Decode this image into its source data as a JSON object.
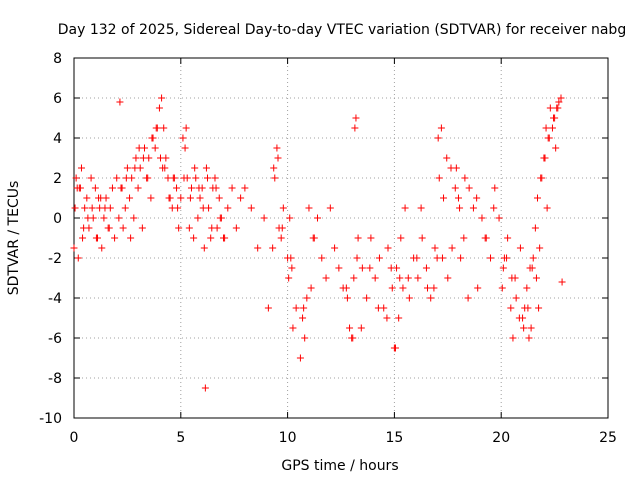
{
  "chart_data": {
    "type": "scatter",
    "title": "Day 132 of 2025, Sidereal Day-to-day VTEC variation (SDTVAR) for receiver nabg",
    "xlabel": "GPS time / hours",
    "ylabel": "SDTVAR / TECUs",
    "xlim": [
      0,
      25
    ],
    "ylim": [
      -10,
      8
    ],
    "xticks": [
      "0",
      "5",
      "10",
      "15",
      "20",
      "25"
    ],
    "yticks": [
      "-10",
      "-8",
      "-6",
      "-4",
      "-2",
      "0",
      "2",
      "4",
      "6",
      "8"
    ],
    "grid": true,
    "marker": "+",
    "color": "#ff0000",
    "series": [
      {
        "name": "SDTVAR",
        "x": [
          0.0,
          0.1,
          0.2,
          0.3,
          0.4,
          0.5,
          0.6,
          0.7,
          0.8,
          0.9,
          1.0,
          1.1,
          1.2,
          1.3,
          1.4,
          1.5,
          1.6,
          1.7,
          1.8,
          1.9,
          2.0,
          2.1,
          2.2,
          2.3,
          2.4,
          2.5,
          2.6,
          2.7,
          2.8,
          2.9,
          3.0,
          3.1,
          3.2,
          3.3,
          3.4,
          3.5,
          3.6,
          3.7,
          3.8,
          3.9,
          4.0,
          4.1,
          4.2,
          4.3,
          4.4,
          4.5,
          4.6,
          4.7,
          4.8,
          4.9,
          5.0,
          5.1,
          5.2,
          5.3,
          5.4,
          5.5,
          5.6,
          5.7,
          5.8,
          5.9,
          6.0,
          6.1,
          6.2,
          6.3,
          6.4,
          6.5,
          6.6,
          6.7,
          6.8,
          6.9,
          7.0,
          7.2,
          7.4,
          7.6,
          7.8,
          8.0,
          8.3,
          8.6,
          8.9,
          9.1,
          9.3,
          9.4,
          9.5,
          9.6,
          9.7,
          9.8,
          10.0,
          10.1,
          10.2,
          10.4,
          10.6,
          10.7,
          10.8,
          10.9,
          11.0,
          11.1,
          11.2,
          11.4,
          11.6,
          11.8,
          12.0,
          12.2,
          12.4,
          12.6,
          12.8,
          12.9,
          13.0,
          13.1,
          13.2,
          13.3,
          13.5,
          13.7,
          13.9,
          14.1,
          14.3,
          14.5,
          14.7,
          14.9,
          15.0,
          15.1,
          15.2,
          15.3,
          15.4,
          15.5,
          15.7,
          15.9,
          16.1,
          16.3,
          16.5,
          16.7,
          16.9,
          17.0,
          17.1,
          17.2,
          17.3,
          17.5,
          17.7,
          17.9,
          18.0,
          18.1,
          18.3,
          18.5,
          18.7,
          18.9,
          19.1,
          19.3,
          19.5,
          19.7,
          19.9,
          20.1,
          20.3,
          20.5,
          20.7,
          20.9,
          21.0,
          21.1,
          21.2,
          21.3,
          21.4,
          21.5,
          21.6,
          21.7,
          21.8,
          21.9,
          22.0,
          22.1,
          22.2,
          22.3,
          22.4,
          22.5,
          22.6,
          22.7,
          22.8,
          0.05,
          0.25,
          0.45,
          0.65,
          0.85,
          1.05,
          1.25,
          1.45,
          2.25,
          2.45,
          2.65,
          2.85,
          3.05,
          3.25,
          3.45,
          3.65,
          3.85,
          4.05,
          4.25,
          4.45,
          4.65,
          4.85,
          5.25,
          5.45,
          5.65,
          5.85,
          6.05,
          6.25,
          6.45,
          6.65,
          6.85,
          7.05,
          9.35,
          9.55,
          9.75,
          10.15,
          13.05,
          13.15,
          13.25,
          14.65,
          14.85,
          15.05,
          15.25,
          16.05,
          16.55,
          17.05,
          17.25,
          17.45,
          17.65,
          17.85,
          18.05,
          18.25,
          20.05,
          20.25,
          20.45,
          20.65,
          20.85,
          21.05,
          21.25,
          21.45,
          21.65,
          21.85,
          22.05,
          22.25,
          22.45,
          22.65,
          22.85,
          0.15,
          0.35,
          1.15,
          1.65,
          2.15,
          4.15,
          5.15,
          6.15,
          10.05,
          10.25,
          10.75,
          11.25,
          12.75,
          13.45,
          13.85,
          14.25,
          15.65,
          16.25,
          16.85,
          18.45,
          18.85,
          19.25,
          19.65,
          20.15,
          20.55,
          21.35,
          21.75,
          22.15,
          22.55
        ],
        "y": [
          -1.5,
          2.0,
          -2.0,
          1.5,
          -1.0,
          0.5,
          1.0,
          -0.5,
          2.0,
          0.0,
          1.5,
          -1.0,
          0.5,
          -1.5,
          0.0,
          1.0,
          -0.5,
          0.5,
          1.5,
          -1.0,
          2.0,
          0.0,
          1.5,
          -0.5,
          0.5,
          2.5,
          1.0,
          2.0,
          0.0,
          3.0,
          1.5,
          2.5,
          -0.5,
          3.5,
          2.0,
          3.0,
          1.0,
          4.0,
          3.5,
          4.5,
          5.5,
          6.0,
          4.5,
          3.0,
          2.0,
          1.0,
          0.5,
          2.0,
          1.5,
          -0.5,
          1.0,
          4.0,
          3.5,
          2.0,
          -0.5,
          1.5,
          -1.0,
          2.0,
          0.0,
          1.0,
          1.5,
          -1.5,
          2.5,
          0.5,
          -1.0,
          1.5,
          2.0,
          -0.5,
          1.0,
          0.0,
          -1.0,
          0.5,
          1.5,
          -0.5,
          1.0,
          1.5,
          0.5,
          -1.5,
          0.0,
          -4.5,
          -1.5,
          2.0,
          3.5,
          -0.5,
          -1.0,
          0.5,
          -2.0,
          0.0,
          -2.5,
          -4.5,
          -7.0,
          -5.0,
          -6.0,
          -4.0,
          0.5,
          -3.5,
          -1.0,
          0.0,
          -2.0,
          -3.0,
          0.5,
          -1.5,
          -2.5,
          -3.5,
          -4.0,
          -5.5,
          -6.0,
          -3.0,
          5.0,
          -1.0,
          -2.5,
          -4.0,
          -1.0,
          -3.0,
          -2.0,
          -4.5,
          -1.5,
          -3.5,
          -6.5,
          -2.5,
          -5.0,
          -1.0,
          -3.5,
          0.5,
          -4.0,
          -2.0,
          -3.0,
          -1.0,
          -2.5,
          -4.0,
          -1.5,
          -2.0,
          2.0,
          4.5,
          1.0,
          -3.0,
          -1.5,
          2.5,
          1.0,
          -2.0,
          2.0,
          1.5,
          0.5,
          -3.5,
          0.0,
          -1.0,
          -2.0,
          1.5,
          0.0,
          -2.5,
          -1.0,
          -3.0,
          -4.0,
          -1.5,
          -5.0,
          -4.5,
          -3.5,
          -6.0,
          -5.5,
          -2.0,
          -0.5,
          1.0,
          -1.5,
          2.0,
          3.0,
          4.5,
          4.0,
          5.5,
          4.5,
          5.0,
          5.5,
          5.8,
          6.0,
          0.5,
          1.5,
          -0.5,
          0.0,
          0.5,
          -1.0,
          1.0,
          0.5,
          1.5,
          2.0,
          -1.0,
          2.5,
          3.5,
          3.0,
          2.0,
          4.0,
          4.5,
          3.0,
          2.5,
          1.0,
          2.0,
          0.5,
          4.5,
          1.0,
          2.5,
          1.5,
          0.5,
          2.0,
          -0.5,
          1.5,
          0.0,
          -1.0,
          2.5,
          3.0,
          -0.5,
          -2.0,
          -6.0,
          4.5,
          -2.0,
          -5.0,
          -2.5,
          -6.5,
          -3.0,
          -2.0,
          -3.5,
          4.0,
          -2.0,
          3.0,
          2.5,
          1.5,
          0.5,
          -1.0,
          -3.5,
          -2.0,
          -4.5,
          -3.0,
          -5.0,
          -5.5,
          -4.5,
          -2.5,
          -3.0,
          2.0,
          3.0,
          4.0,
          5.0,
          5.5,
          -3.2,
          1.5,
          2.5,
          1.0,
          -0.5,
          5.8,
          2.5,
          2.0,
          -8.5,
          -3.0,
          -5.5,
          -4.5,
          -1.0,
          -3.5,
          -5.5,
          -2.5,
          -4.5,
          -3.0,
          0.5,
          -3.5,
          -4.0,
          1.0,
          -1.0,
          0.5,
          -2.0,
          -6.0,
          -2.5,
          -4.5,
          0.5,
          3.5
        ]
      }
    ]
  }
}
